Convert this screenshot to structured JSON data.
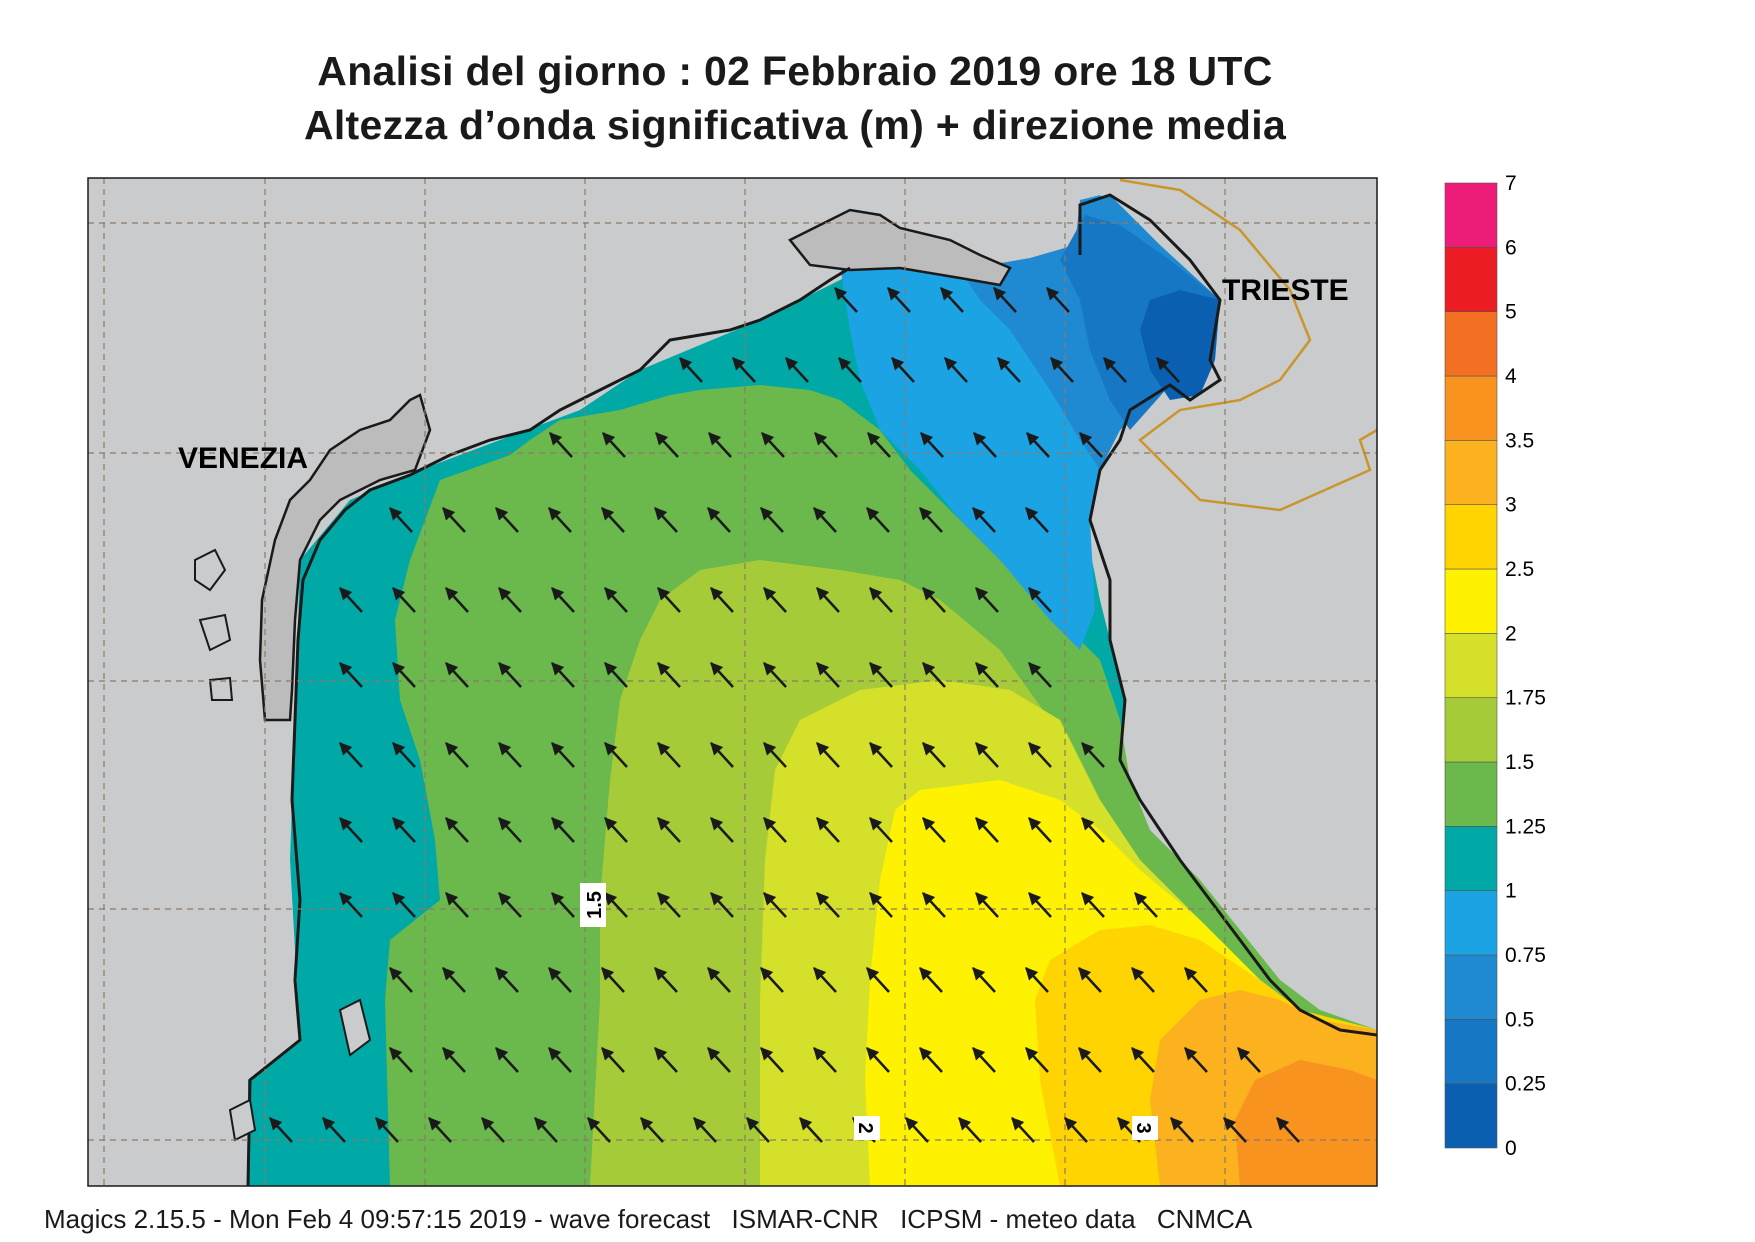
{
  "title": {
    "line1": "Analisi del giorno :  02  Febbraio 2019   ore 18 UTC",
    "line2": "Altezza d’onda significativa (m) + direzione media"
  },
  "cities": [
    {
      "name": "VENEZIA"
    },
    {
      "name": "TRIESTE"
    }
  ],
  "contour_labels": [
    "1.5",
    "2",
    "3"
  ],
  "legend": {
    "levels": [
      "0",
      "0.25",
      "0.5",
      "0.75",
      "1",
      "1.25",
      "1.5",
      "1.75",
      "2",
      "2.5",
      "3",
      "3.5",
      "4",
      "5",
      "6",
      "7"
    ],
    "colors": [
      "#0a5fb0",
      "#1677c4",
      "#1f8ad2",
      "#1ca3e4",
      "#00a9a6",
      "#6bb84c",
      "#a5cc38",
      "#d4e02a",
      "#fff200",
      "#ffd400",
      "#fbb21e",
      "#f7931e",
      "#f36f21",
      "#ec1c24",
      "#ee1c79"
    ]
  },
  "map": {
    "land_color": "#cacbcc",
    "lagoon_color": "#bcbcbc",
    "border_color": "#c9962c",
    "arrow_direction": "north-west"
  },
  "footer": {
    "software": "Magics 2.15.5 - Mon Feb  4 09:57:15 2019 - wave forecast",
    "src1": "ISMAR-CNR",
    "src2": "ICPSM - meteo data",
    "src3": "CNMCA"
  }
}
